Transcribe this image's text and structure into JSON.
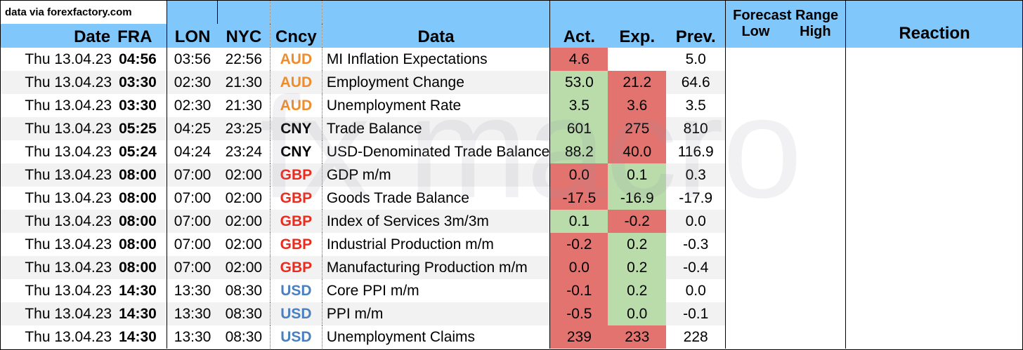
{
  "source_label": "data via forexfactory.com",
  "headers": {
    "date": "Date",
    "fra": "FRA",
    "lon": "LON",
    "nyc": "NYC",
    "ccy": "Cncy",
    "data": "Data",
    "act": "Act.",
    "exp": "Exp.",
    "prev": "Prev.",
    "forecast_range": "Forecast Range",
    "low": "Low",
    "high": "High",
    "reaction": "Reaction"
  },
  "watermark": "fxmacro",
  "colors": {
    "header_blue": "#80c7fc",
    "aud": "#ef8c2b",
    "cny": "#000000",
    "gbp": "#ea2b1f",
    "usd": "#4a7fc0",
    "cell_green": "#b9dcaa",
    "cell_red": "#e3736f"
  },
  "rows": [
    {
      "date": "Thu 13.04.23",
      "fra": "04:56",
      "lon": "03:56",
      "nyc": "22:56",
      "ccy": "AUD",
      "data": "MI Inflation Expectations",
      "act": "4.6",
      "exp": "",
      "prev": "5.0",
      "act_color": "red",
      "exp_color": ""
    },
    {
      "date": "Thu 13.04.23",
      "fra": "03:30",
      "lon": "02:30",
      "nyc": "21:30",
      "ccy": "AUD",
      "data": "Employment Change",
      "act": "53.0",
      "exp": "21.2",
      "prev": "64.6",
      "act_color": "green",
      "exp_color": "red"
    },
    {
      "date": "Thu 13.04.23",
      "fra": "03:30",
      "lon": "02:30",
      "nyc": "21:30",
      "ccy": "AUD",
      "data": "Unemployment Rate",
      "act": "3.5",
      "exp": "3.6",
      "prev": "3.5",
      "act_color": "green",
      "exp_color": "red"
    },
    {
      "date": "Thu 13.04.23",
      "fra": "05:25",
      "lon": "04:25",
      "nyc": "23:25",
      "ccy": "CNY",
      "data": "Trade Balance",
      "act": "601",
      "exp": "275",
      "prev": "810",
      "act_color": "green",
      "exp_color": "red"
    },
    {
      "date": "Thu 13.04.23",
      "fra": "05:24",
      "lon": "04:24",
      "nyc": "23:24",
      "ccy": "CNY",
      "data": "USD-Denominated Trade Balance",
      "act": "88.2",
      "exp": "40.0",
      "prev": "116.9",
      "act_color": "green",
      "exp_color": "red"
    },
    {
      "date": "Thu 13.04.23",
      "fra": "08:00",
      "lon": "07:00",
      "nyc": "02:00",
      "ccy": "GBP",
      "data": "GDP m/m",
      "act": "0.0",
      "exp": "0.1",
      "prev": "0.3",
      "act_color": "red",
      "exp_color": "green"
    },
    {
      "date": "Thu 13.04.23",
      "fra": "08:00",
      "lon": "07:00",
      "nyc": "02:00",
      "ccy": "GBP",
      "data": "Goods Trade Balance",
      "act": "-17.5",
      "exp": "-16.9",
      "prev": "-17.9",
      "act_color": "red",
      "exp_color": "green"
    },
    {
      "date": "Thu 13.04.23",
      "fra": "08:00",
      "lon": "07:00",
      "nyc": "02:00",
      "ccy": "GBP",
      "data": "Index of Services 3m/3m",
      "act": "0.1",
      "exp": "-0.2",
      "prev": "0.0",
      "act_color": "green",
      "exp_color": "red"
    },
    {
      "date": "Thu 13.04.23",
      "fra": "08:00",
      "lon": "07:00",
      "nyc": "02:00",
      "ccy": "GBP",
      "data": "Industrial Production m/m",
      "act": "-0.2",
      "exp": "0.2",
      "prev": "-0.3",
      "act_color": "red",
      "exp_color": "green"
    },
    {
      "date": "Thu 13.04.23",
      "fra": "08:00",
      "lon": "07:00",
      "nyc": "02:00",
      "ccy": "GBP",
      "data": "Manufacturing Production m/m",
      "act": "0.0",
      "exp": "0.2",
      "prev": "-0.4",
      "act_color": "red",
      "exp_color": "green"
    },
    {
      "date": "Thu 13.04.23",
      "fra": "14:30",
      "lon": "13:30",
      "nyc": "08:30",
      "ccy": "USD",
      "data": "Core PPI m/m",
      "act": "-0.1",
      "exp": "0.2",
      "prev": "0.0",
      "act_color": "red",
      "exp_color": "green"
    },
    {
      "date": "Thu 13.04.23",
      "fra": "14:30",
      "lon": "13:30",
      "nyc": "08:30",
      "ccy": "USD",
      "data": "PPI m/m",
      "act": "-0.5",
      "exp": "0.0",
      "prev": "-0.1",
      "act_color": "red",
      "exp_color": "green"
    },
    {
      "date": "Thu 13.04.23",
      "fra": "14:30",
      "lon": "13:30",
      "nyc": "08:30",
      "ccy": "USD",
      "data": "Unemployment Claims",
      "act": "239",
      "exp": "233",
      "prev": "228",
      "act_color": "red",
      "exp_color": "red"
    }
  ]
}
